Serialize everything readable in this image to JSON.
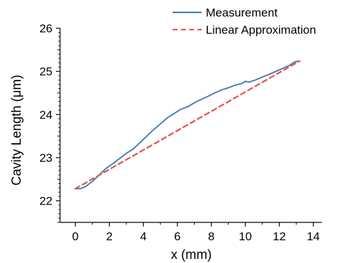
{
  "chart_data": {
    "type": "line",
    "title": "",
    "xlabel": "x (mm)",
    "ylabel": "Cavity Length (μm)",
    "xlim": [
      -0.9,
      14.5
    ],
    "ylim": [
      21.5,
      26.0
    ],
    "x_ticks": [
      0,
      2,
      4,
      6,
      8,
      10,
      12,
      14
    ],
    "x_tick_labels": [
      "0",
      "2",
      "4",
      "6",
      "8",
      "10",
      "12",
      "14"
    ],
    "y_ticks": [
      22,
      23,
      24,
      25,
      26
    ],
    "y_tick_labels": [
      "22",
      "23",
      "24",
      "25",
      "26"
    ],
    "grid": false,
    "legend_position": "top-right",
    "series": [
      {
        "name": "Measurement",
        "color": "#4a7db4",
        "style": "solid",
        "x": [
          0,
          0.3,
          0.6,
          1.0,
          1.4,
          1.8,
          2.2,
          2.6,
          3.0,
          3.4,
          3.8,
          4.2,
          4.6,
          5.0,
          5.4,
          5.8,
          6.2,
          6.6,
          7.0,
          7.4,
          7.8,
          8.2,
          8.6,
          9.0,
          9.4,
          9.8,
          10.0,
          10.2,
          10.6,
          11.0,
          11.4,
          11.8,
          12.2,
          12.6,
          12.9,
          13.2
        ],
        "y": [
          22.28,
          22.28,
          22.33,
          22.45,
          22.6,
          22.75,
          22.86,
          22.98,
          23.1,
          23.2,
          23.35,
          23.5,
          23.65,
          23.78,
          23.92,
          24.02,
          24.12,
          24.18,
          24.27,
          24.35,
          24.42,
          24.5,
          24.57,
          24.62,
          24.68,
          24.72,
          24.77,
          24.75,
          24.8,
          24.87,
          24.93,
          25.0,
          25.07,
          25.14,
          25.22,
          25.24
        ]
      },
      {
        "name": "Linear Approximation",
        "color": "#e05a5a",
        "style": "dashed",
        "x": [
          0,
          13.2
        ],
        "y": [
          22.28,
          25.24
        ]
      }
    ]
  }
}
